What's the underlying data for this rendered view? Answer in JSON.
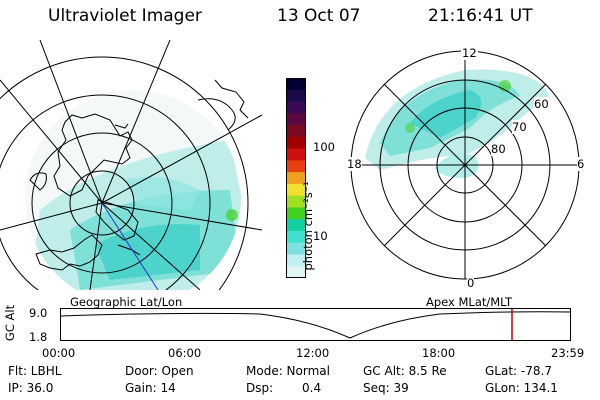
{
  "header": {
    "instrument": "Ultraviolet Imager",
    "date": "13 Oct 07",
    "time": "21:16:41 UT"
  },
  "colorbar": {
    "unit_label": "photon cm⁻²s⁻¹",
    "ticks": [
      "100",
      "10"
    ],
    "colors": [
      "#000033",
      "#1a0a4a",
      "#3a0a55",
      "#5a0a40",
      "#7a0a20",
      "#a00000",
      "#d01010",
      "#e84010",
      "#f0a020",
      "#f0e030",
      "#a0e020",
      "#40d020",
      "#10d0a0",
      "#40e0d0",
      "#80e0e0",
      "#c0f0f0",
      "#e0f4f4"
    ]
  },
  "geo_map": {
    "label": "Geographic Lat/Lon"
  },
  "apex_map": {
    "label": "Apex MLat/MLT",
    "mlt_labels": {
      "top": "12",
      "right": "6",
      "bottom": "0",
      "left": "18"
    },
    "lat_labels": [
      "60",
      "70",
      "80"
    ]
  },
  "altitude_plot": {
    "ylabel": "GC Alt",
    "y_ticks": [
      "9.0",
      "1.8"
    ],
    "x_ticks": [
      "00:00",
      "06:00",
      "12:00",
      "18:00",
      "23:59"
    ],
    "current_time_marker_color": "#cc0000"
  },
  "info": {
    "filter": "Flt: LBHL",
    "ip": "IP: 36.0",
    "door": "Door: Open",
    "gain": "Gain: 14",
    "mode": "Mode: Normal",
    "dsp_label": "Dsp:",
    "dsp_value": "0.4",
    "gc_alt": "GC Alt: 8.5 Re",
    "seq": "Seq: 39",
    "glat": "GLat: -78.7",
    "glon": "GLon: 134.1"
  }
}
